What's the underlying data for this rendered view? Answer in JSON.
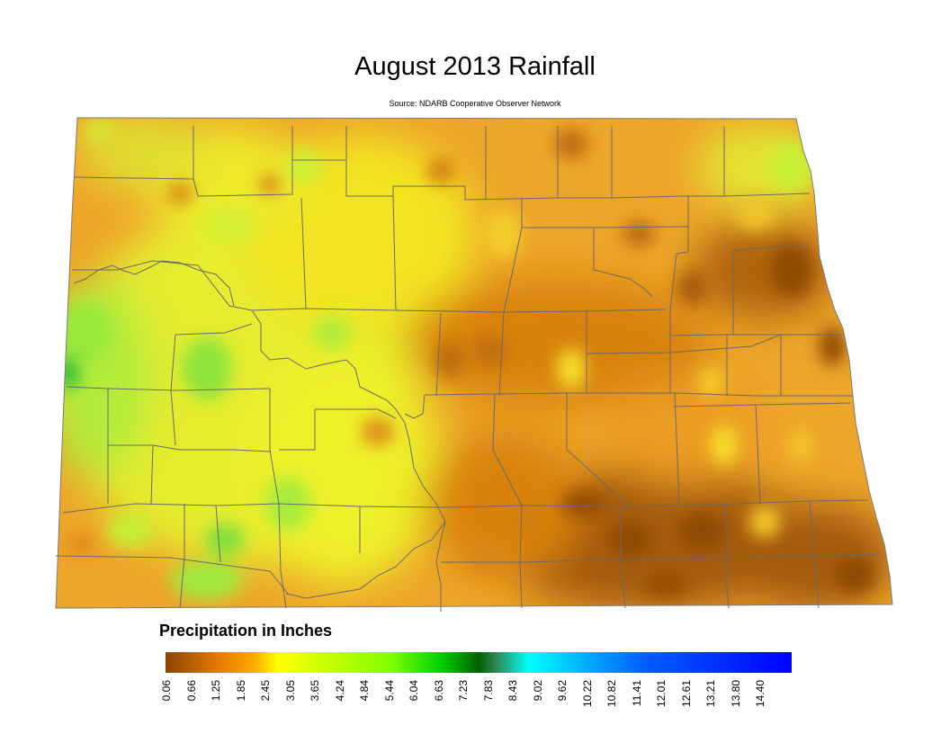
{
  "title": "August 2013 Rainfall",
  "source": "Source: NDARB Cooperative Observer Network",
  "legend": {
    "title": "Precipitation in Inches",
    "ticks": [
      "0.06",
      "0.66",
      "1.25",
      "1.85",
      "2.45",
      "3.05",
      "3.65",
      "4.24",
      "4.84",
      "5.44",
      "6.04",
      "6.63",
      "7.23",
      "7.83",
      "8.43",
      "9.02",
      "9.62",
      "10.22",
      "10.82",
      "11.41",
      "12.01",
      "12.61",
      "13.21",
      "13.80",
      "14.40"
    ],
    "colors": [
      "#8b4500",
      "#e07800",
      "#ffa800",
      "#ffff00",
      "#c8ff00",
      "#80ff00",
      "#00d000",
      "#006000",
      "#00ffff",
      "#0060ff",
      "#0000ff"
    ]
  },
  "map": {
    "region": "North Dakota",
    "colors": {
      "dark_brown": "#9a5206",
      "orange": "#e48a12",
      "light_orange": "#f3ad2a",
      "yellow": "#f8ec1c",
      "yellow_green": "#c8f23a",
      "green": "#8ce83a",
      "bright_green": "#3ccc3a",
      "county_line": "#6a6a6a"
    }
  }
}
